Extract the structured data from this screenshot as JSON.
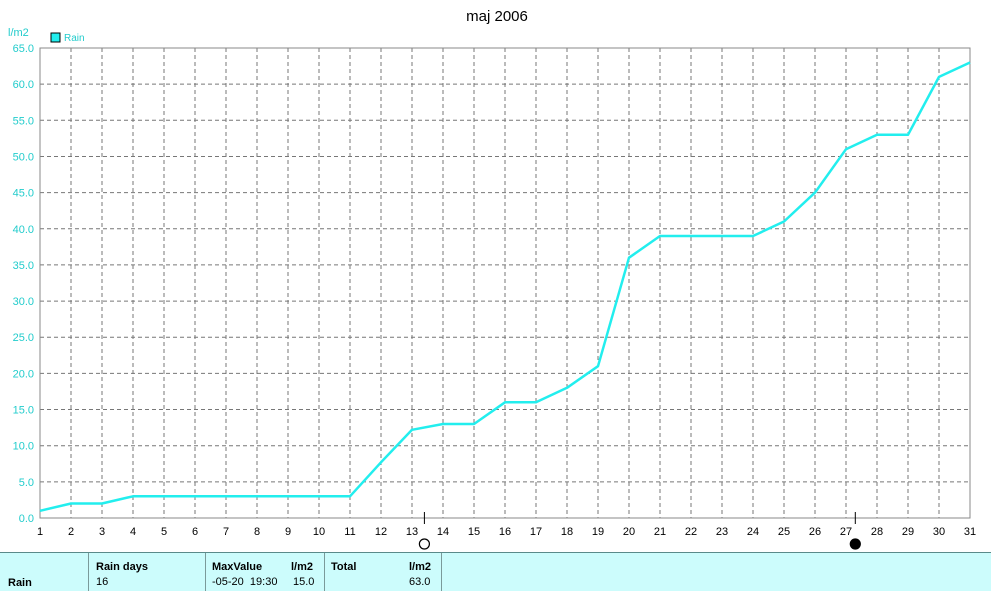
{
  "chart_data": {
    "type": "line",
    "title": "maj 2006",
    "ylabel": "l/m2",
    "xlim": [
      1,
      31
    ],
    "ylim": [
      0,
      65
    ],
    "grid": true,
    "legend_position": "top-left",
    "x": [
      1,
      2,
      3,
      4,
      5,
      6,
      7,
      8,
      9,
      10,
      11,
      12,
      13,
      14,
      15,
      16,
      17,
      18,
      19,
      20,
      21,
      22,
      23,
      24,
      25,
      26,
      27,
      28,
      29,
      30,
      31
    ],
    "x_tick_labels": [
      "1",
      "2",
      "3",
      "4",
      "5",
      "6",
      "7",
      "8",
      "9",
      "10",
      "11",
      "12",
      "13",
      "14",
      "15",
      "16",
      "17",
      "18",
      "19",
      "20",
      "21",
      "22",
      "23",
      "24",
      "25",
      "26",
      "27",
      "28",
      "29",
      "30",
      "31"
    ],
    "y_tick_labels": [
      "0.0",
      "5.0",
      "10.0",
      "15.0",
      "20.0",
      "25.0",
      "30.0",
      "35.0",
      "40.0",
      "45.0",
      "50.0",
      "55.0",
      "60.0",
      "65.0"
    ],
    "series": [
      {
        "name": "Rain",
        "color": "#22eeee",
        "values": [
          1,
          2,
          2,
          3,
          3,
          3,
          3,
          3,
          3,
          3,
          3,
          7.7,
          12.2,
          13,
          13,
          16,
          16,
          18,
          21,
          36,
          39,
          39,
          39,
          39,
          41,
          45,
          51,
          53,
          53,
          61,
          63
        ]
      }
    ],
    "moon_markers": [
      {
        "phase": "full-moon",
        "x": 13.4
      },
      {
        "phase": "new-moon",
        "x": 27.3
      }
    ]
  },
  "summary": {
    "row_label": "Rain",
    "rain_days_header": "Rain days",
    "rain_days_value": "16",
    "maxvalue_header": "MaxValue",
    "maxvalue_unit": "l/m2",
    "maxvalue_time": "-05-20  19:30",
    "maxvalue_value": "15.0",
    "total_header": "Total",
    "total_unit": "l/m2",
    "total_value": "63.0"
  }
}
